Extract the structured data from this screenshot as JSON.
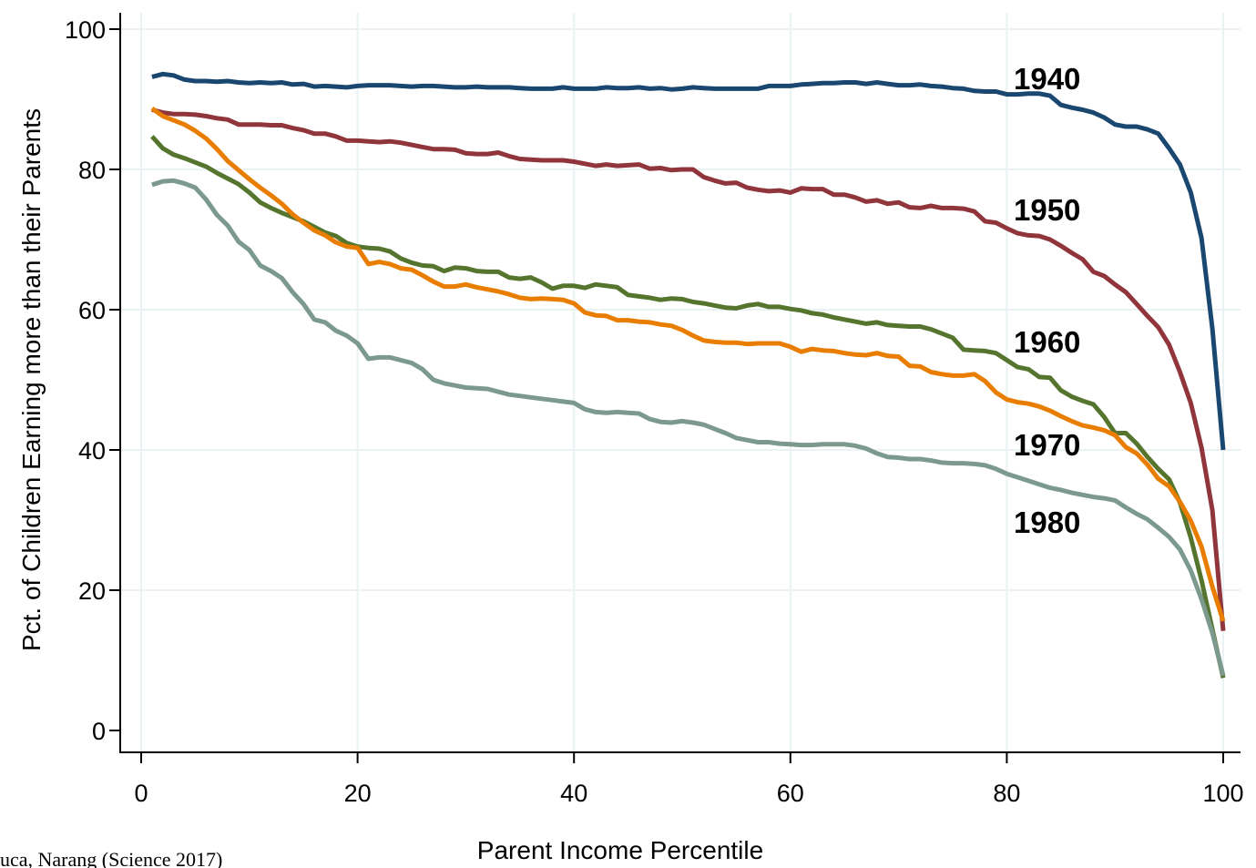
{
  "chart_data": {
    "type": "line",
    "title": "",
    "xlabel": "Parent Income Percentile",
    "ylabel": "Pct. of Children Earning more than their Parents",
    "xlim": [
      0,
      100
    ],
    "ylim": [
      0,
      100
    ],
    "xticks": [
      0,
      20,
      40,
      60,
      80,
      100
    ],
    "yticks": [
      0,
      20,
      40,
      60,
      80,
      100
    ],
    "grid": true,
    "legend": "inline labels at right",
    "note": "uca, Narang (Science 2017)",
    "x": [
      1,
      2,
      3,
      4,
      5,
      6,
      7,
      8,
      9,
      10,
      11,
      12,
      13,
      14,
      15,
      16,
      17,
      18,
      19,
      20,
      21,
      22,
      23,
      24,
      25,
      26,
      27,
      28,
      29,
      30,
      31,
      32,
      33,
      34,
      35,
      36,
      37,
      38,
      39,
      40,
      41,
      42,
      43,
      44,
      45,
      46,
      47,
      48,
      49,
      50,
      51,
      52,
      53,
      54,
      55,
      56,
      57,
      58,
      59,
      60,
      61,
      62,
      63,
      64,
      65,
      66,
      67,
      68,
      69,
      70,
      71,
      72,
      73,
      74,
      75,
      76,
      77,
      78,
      79,
      80,
      81,
      82,
      83,
      84,
      85,
      86,
      87,
      88,
      89,
      90,
      91,
      92,
      93,
      94,
      95,
      96,
      97,
      98,
      99,
      100
    ],
    "series": [
      {
        "name": "1940",
        "color": "#1a476f",
        "values": [
          93.2,
          93.6,
          93.4,
          92.8,
          92.6,
          92.6,
          92.5,
          92.6,
          92.4,
          92.3,
          92.4,
          92.3,
          92.4,
          92.1,
          92.2,
          91.8,
          91.9,
          91.8,
          91.7,
          91.9,
          92.0,
          92.0,
          92.0,
          91.9,
          91.8,
          91.9,
          91.9,
          91.8,
          91.7,
          91.7,
          91.8,
          91.7,
          91.7,
          91.7,
          91.6,
          91.5,
          91.5,
          91.5,
          91.7,
          91.5,
          91.5,
          91.5,
          91.7,
          91.6,
          91.6,
          91.7,
          91.5,
          91.6,
          91.4,
          91.5,
          91.7,
          91.6,
          91.5,
          91.5,
          91.5,
          91.5,
          91.5,
          91.9,
          91.9,
          91.9,
          92.1,
          92.2,
          92.3,
          92.3,
          92.4,
          92.4,
          92.2,
          92.4,
          92.2,
          92.0,
          92.0,
          92.1,
          91.9,
          91.8,
          91.6,
          91.5,
          91.2,
          91.1,
          91.1,
          90.7,
          90.7,
          90.8,
          90.8,
          90.5,
          89.2,
          88.8,
          88.5,
          88.1,
          87.4,
          86.4,
          86.1,
          86.1,
          85.7,
          85.1,
          83.0,
          80.7,
          76.7,
          70.2,
          57.3,
          40.0
        ]
      },
      {
        "name": "1950",
        "color": "#90353b",
        "values": [
          88.5,
          88.1,
          87.9,
          87.9,
          87.8,
          87.6,
          87.3,
          87.1,
          86.4,
          86.4,
          86.4,
          86.3,
          86.3,
          85.9,
          85.6,
          85.1,
          85.1,
          84.7,
          84.1,
          84.1,
          84.0,
          83.9,
          84.0,
          83.8,
          83.5,
          83.2,
          82.9,
          82.9,
          82.8,
          82.3,
          82.2,
          82.2,
          82.4,
          81.9,
          81.5,
          81.4,
          81.3,
          81.3,
          81.3,
          81.1,
          80.8,
          80.5,
          80.7,
          80.5,
          80.6,
          80.7,
          80.1,
          80.2,
          79.9,
          80.0,
          80.0,
          78.9,
          78.4,
          78.0,
          78.1,
          77.4,
          77.1,
          76.9,
          77.0,
          76.7,
          77.3,
          77.2,
          77.2,
          76.4,
          76.4,
          76.0,
          75.4,
          75.6,
          75.1,
          75.3,
          74.6,
          74.5,
          74.8,
          74.5,
          74.5,
          74.4,
          74.0,
          72.6,
          72.4,
          71.6,
          70.9,
          70.6,
          70.5,
          70.0,
          69.1,
          68.1,
          67.2,
          65.4,
          64.8,
          63.6,
          62.5,
          60.8,
          59.1,
          57.5,
          55.0,
          51.1,
          46.7,
          40.3,
          31.4,
          14.2
        ]
      },
      {
        "name": "1960",
        "color": "#55752f",
        "values": [
          84.7,
          83.0,
          82.1,
          81.6,
          81.0,
          80.4,
          79.5,
          78.7,
          77.9,
          76.7,
          75.3,
          74.5,
          73.8,
          73.2,
          72.6,
          71.8,
          71.0,
          70.5,
          69.5,
          69.0,
          68.8,
          68.7,
          68.3,
          67.3,
          66.7,
          66.3,
          66.2,
          65.5,
          66.0,
          65.9,
          65.5,
          65.4,
          65.4,
          64.6,
          64.4,
          64.6,
          63.9,
          63.0,
          63.4,
          63.4,
          63.1,
          63.6,
          63.4,
          63.2,
          62.1,
          61.9,
          61.7,
          61.4,
          61.6,
          61.5,
          61.1,
          60.9,
          60.6,
          60.3,
          60.2,
          60.6,
          60.8,
          60.4,
          60.4,
          60.1,
          59.9,
          59.5,
          59.3,
          58.9,
          58.6,
          58.3,
          58.0,
          58.2,
          57.8,
          57.7,
          57.6,
          57.6,
          57.2,
          56.6,
          56.0,
          54.3,
          54.2,
          54.1,
          53.8,
          52.8,
          51.8,
          51.5,
          50.4,
          50.3,
          48.5,
          47.6,
          47.0,
          46.5,
          44.7,
          42.4,
          42.4,
          40.9,
          39.0,
          37.3,
          35.8,
          32.5,
          27.5,
          21.4,
          14.4,
          7.5
        ]
      },
      {
        "name": "1970",
        "color": "#e87d00",
        "values": [
          88.7,
          87.6,
          87.0,
          86.4,
          85.5,
          84.4,
          82.9,
          81.2,
          79.9,
          78.6,
          77.4,
          76.3,
          75.1,
          73.6,
          72.4,
          71.3,
          70.6,
          69.6,
          69.0,
          68.8,
          66.5,
          66.8,
          66.5,
          65.9,
          65.7,
          64.9,
          64.0,
          63.3,
          63.3,
          63.6,
          63.2,
          62.9,
          62.6,
          62.2,
          61.7,
          61.5,
          61.6,
          61.5,
          61.4,
          60.9,
          59.6,
          59.2,
          59.1,
          58.5,
          58.5,
          58.3,
          58.2,
          57.9,
          57.7,
          57.1,
          56.3,
          55.6,
          55.4,
          55.3,
          55.3,
          55.1,
          55.2,
          55.2,
          55.2,
          54.7,
          54.0,
          54.4,
          54.2,
          54.1,
          53.8,
          53.6,
          53.5,
          53.8,
          53.4,
          53.3,
          52.0,
          51.9,
          51.1,
          50.8,
          50.6,
          50.6,
          50.8,
          49.8,
          48.2,
          47.2,
          46.8,
          46.6,
          46.2,
          45.6,
          44.8,
          44.1,
          43.5,
          43.2,
          42.8,
          42.1,
          40.4,
          39.5,
          37.9,
          35.9,
          34.8,
          32.6,
          29.9,
          26.2,
          20.5,
          15.6
        ]
      },
      {
        "name": "1980",
        "color": "#7c998e",
        "values": [
          77.8,
          78.3,
          78.4,
          78.0,
          77.4,
          75.7,
          73.5,
          72.0,
          69.7,
          68.5,
          66.3,
          65.5,
          64.5,
          62.5,
          60.8,
          58.6,
          58.2,
          57.0,
          56.3,
          55.2,
          53.0,
          53.2,
          53.2,
          52.8,
          52.4,
          51.5,
          50.0,
          49.5,
          49.2,
          48.9,
          48.8,
          48.7,
          48.3,
          47.9,
          47.7,
          47.5,
          47.3,
          47.1,
          46.9,
          46.7,
          45.8,
          45.4,
          45.3,
          45.4,
          45.3,
          45.2,
          44.4,
          44.0,
          43.9,
          44.1,
          43.9,
          43.6,
          43.0,
          42.4,
          41.7,
          41.4,
          41.1,
          41.1,
          40.9,
          40.8,
          40.7,
          40.7,
          40.8,
          40.8,
          40.8,
          40.6,
          40.2,
          39.5,
          39.0,
          38.9,
          38.7,
          38.7,
          38.5,
          38.2,
          38.1,
          38.1,
          38.0,
          37.8,
          37.3,
          36.6,
          36.1,
          35.6,
          35.1,
          34.6,
          34.3,
          33.9,
          33.6,
          33.3,
          33.1,
          32.8,
          31.8,
          30.9,
          30.1,
          28.9,
          27.6,
          25.8,
          22.8,
          18.7,
          13.9,
          7.8
        ]
      }
    ]
  }
}
